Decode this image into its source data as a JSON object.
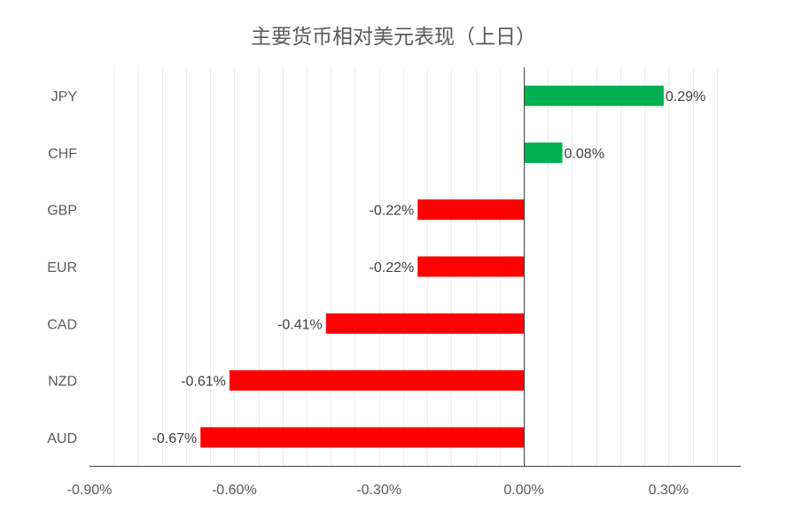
{
  "chart_data": {
    "type": "bar",
    "orientation": "horizontal",
    "title": "主要货币相对美元表现（上日）",
    "categories": [
      "JPY",
      "CHF",
      "GBP",
      "EUR",
      "CAD",
      "NZD",
      "AUD"
    ],
    "values": [
      0.29,
      0.08,
      -0.22,
      -0.22,
      -0.41,
      -0.61,
      -0.67
    ],
    "data_labels": [
      "0.29%",
      "0.08%",
      "-0.22%",
      "-0.22%",
      "-0.41%",
      "-0.61%",
      "-0.67%"
    ],
    "xlim": [
      -0.9,
      0.45
    ],
    "x_ticks": [
      -0.9,
      -0.6,
      -0.3,
      0.0,
      0.3
    ],
    "x_tick_labels": [
      "-0.90%",
      "-0.60%",
      "-0.30%",
      "0.00%",
      "0.30%"
    ],
    "grid": true,
    "colors": {
      "positive": "#00b050",
      "negative": "#ff0000",
      "grid": "#ececec",
      "axis": "#404040"
    }
  }
}
